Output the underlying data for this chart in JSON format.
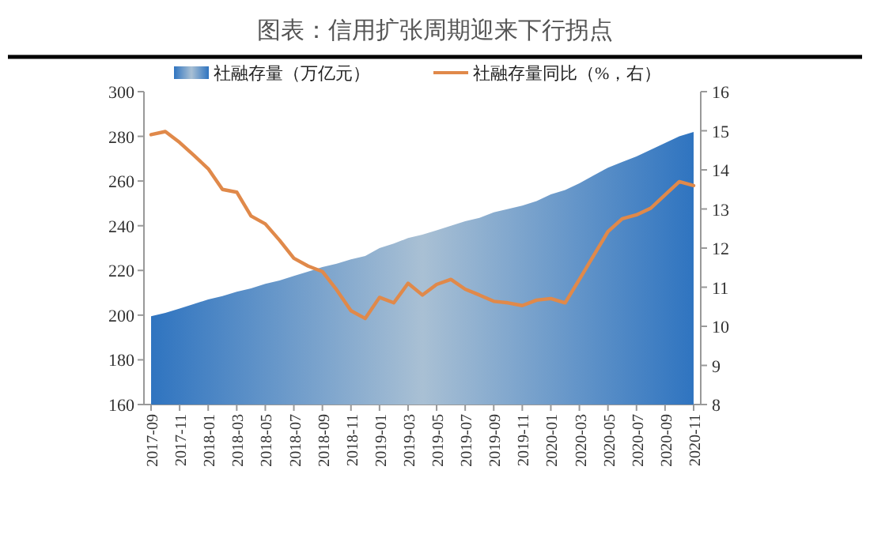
{
  "chart_data": {
    "type": "area",
    "title": "图表：信用扩张周期迎来下行拐点",
    "categories": [
      "2017-09",
      null,
      "2017-11",
      null,
      "2018-01",
      null,
      "2018-03",
      null,
      "2018-05",
      null,
      "2018-07",
      null,
      "2018-09",
      null,
      "2018-11",
      null,
      "2019-01",
      null,
      "2019-03",
      null,
      "2019-05",
      null,
      "2019-07",
      null,
      "2019-09",
      null,
      "2019-11",
      null,
      "2020-01",
      null,
      "2020-03",
      null,
      "2020-05",
      null,
      "2020-07",
      null,
      "2020-09",
      null,
      "2020-11"
    ],
    "series": [
      {
        "name": "社融存量（万亿元）",
        "color": "#2f74c0",
        "values": [
          199.5,
          201,
          203,
          205,
          207,
          208.5,
          210.5,
          212,
          214,
          215.5,
          217.5,
          219.5,
          221.5,
          223,
          225,
          226.5,
          230,
          232,
          234.5,
          236,
          238,
          240,
          242,
          243.5,
          246,
          247.5,
          249,
          251,
          254,
          256,
          259,
          262.5,
          266,
          268.5,
          271,
          274,
          277,
          280,
          282
        ]
      },
      {
        "name": "社融存量同比（%，右）",
        "type": "line",
        "axis": "y2",
        "color": "#e0894a",
        "values": [
          14.9,
          14.98,
          14.7,
          14.37,
          14.03,
          13.5,
          13.43,
          12.82,
          12.62,
          12.2,
          11.74,
          11.54,
          11.4,
          10.93,
          10.4,
          10.2,
          10.74,
          10.6,
          11.1,
          10.8,
          11.07,
          11.2,
          10.95,
          10.8,
          10.64,
          10.6,
          10.53,
          10.67,
          10.71,
          10.6,
          11.2,
          11.81,
          12.42,
          12.75,
          12.85,
          13.02,
          13.36,
          13.7,
          13.6
        ]
      }
    ],
    "ylim": [
      160,
      300
    ],
    "yticks": [
      160,
      180,
      200,
      220,
      240,
      260,
      280,
      300
    ],
    "y2lim": [
      8,
      16
    ],
    "y2ticks": [
      8,
      9,
      10,
      11,
      12,
      13,
      14,
      15,
      16
    ],
    "legend": "top"
  }
}
